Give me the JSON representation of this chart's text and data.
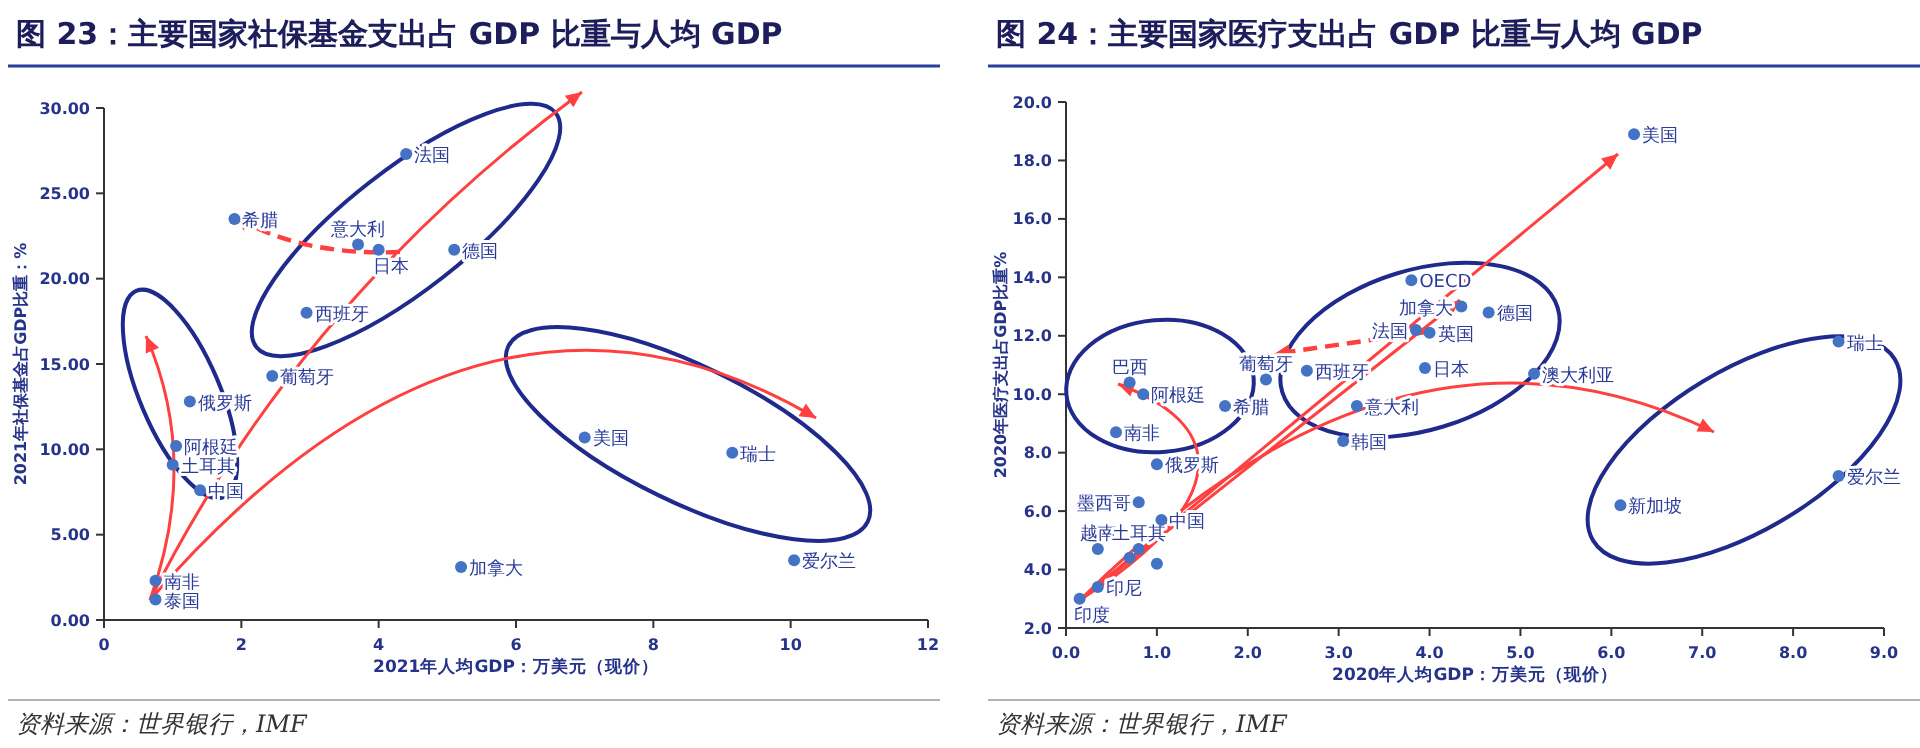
{
  "chart_data": [
    {
      "type": "scatter",
      "title": "图 23：主要国家社保基金支出占 GDP 比重与人均 GDP",
      "xlabel": "2021年人均GDP：万美元（现价）",
      "ylabel": "2021年社保基金占GDP比重：%",
      "xlim": [
        0,
        12
      ],
      "xticks": [
        0,
        2,
        4,
        6,
        8,
        10,
        12
      ],
      "ylim": [
        0,
        30
      ],
      "yticks": [
        {
          "value": 0,
          "label": "0.00"
        },
        {
          "value": 5,
          "label": "5.00"
        },
        {
          "value": 10,
          "label": "10.00"
        },
        {
          "value": 15,
          "label": "15.00"
        },
        {
          "value": 20,
          "label": "20.00"
        },
        {
          "value": 25,
          "label": "25.00"
        },
        {
          "value": 30,
          "label": "30.00"
        }
      ],
      "grid": false,
      "marker": "circle",
      "series": [
        {
          "color": "#4472c4",
          "x": [
            1.9,
            3.7,
            4.0,
            4.4,
            5.1,
            2.95,
            2.45,
            1.25,
            1.05,
            1.0,
            1.4,
            0.75,
            0.75,
            5.2,
            7.0,
            9.15,
            10.05
          ],
          "values": [
            23.5,
            22.0,
            21.7,
            27.3,
            21.7,
            18.0,
            14.3,
            12.8,
            10.2,
            9.1,
            7.6,
            2.3,
            1.2,
            3.1,
            10.7,
            9.8,
            3.5
          ]
        }
      ],
      "annotations": [
        {
          "text": "希腊",
          "x": 1.9,
          "y": 23.5
        },
        {
          "text": "意大利",
          "x": 3.7,
          "y": 22.0
        },
        {
          "text": "日本",
          "x": 4.0,
          "y": 21.7
        },
        {
          "text": "法国",
          "x": 4.4,
          "y": 27.3
        },
        {
          "text": "德国",
          "x": 5.1,
          "y": 21.7
        },
        {
          "text": "西班牙",
          "x": 2.95,
          "y": 18.0
        },
        {
          "text": "葡萄牙",
          "x": 2.45,
          "y": 14.3
        },
        {
          "text": "俄罗斯",
          "x": 1.25,
          "y": 12.8
        },
        {
          "text": "阿根廷",
          "x": 1.05,
          "y": 10.2
        },
        {
          "text": "土耳其",
          "x": 1.0,
          "y": 9.1
        },
        {
          "text": "中国",
          "x": 1.4,
          "y": 7.6
        },
        {
          "text": "南非",
          "x": 0.75,
          "y": 2.3
        },
        {
          "text": "泰国",
          "x": 0.75,
          "y": 1.2
        },
        {
          "text": "加拿大",
          "x": 5.2,
          "y": 3.1
        },
        {
          "text": "美国",
          "x": 7.0,
          "y": 10.7
        },
        {
          "text": "瑞士",
          "x": 9.15,
          "y": 9.8
        },
        {
          "text": "爱尔兰",
          "x": 10.05,
          "y": 3.5
        },
        "资料来源：世界银行，IMF"
      ]
    },
    {
      "type": "scatter",
      "title": "图 24：主要国家医疗支出占 GDP 比重与人均 GDP",
      "xlabel": "2020年人均GDP：万美元（现价）",
      "ylabel": "2020年医疗支出占GDP比重%",
      "xlim": [
        0,
        9
      ],
      "xticks": [
        {
          "value": 0,
          "label": "0.0"
        },
        {
          "value": 1,
          "label": "1.0"
        },
        {
          "value": 2,
          "label": "2.0"
        },
        {
          "value": 3,
          "label": "3.0"
        },
        {
          "value": 4,
          "label": "4.0"
        },
        {
          "value": 5,
          "label": "5.0"
        },
        {
          "value": 6,
          "label": "6.0"
        },
        {
          "value": 7,
          "label": "7.0"
        },
        {
          "value": 8,
          "label": "8.0"
        },
        {
          "value": 9,
          "label": "9.0"
        }
      ],
      "ylim": [
        2,
        20
      ],
      "yticks": [
        {
          "value": 2,
          "label": "2.0"
        },
        {
          "value": 4,
          "label": "4.0"
        },
        {
          "value": 6,
          "label": "6.0"
        },
        {
          "value": 8,
          "label": "8.0"
        },
        {
          "value": 10,
          "label": "10.0"
        },
        {
          "value": 12,
          "label": "12.0"
        },
        {
          "value": 14,
          "label": "14.0"
        },
        {
          "value": 16,
          "label": "16.0"
        },
        {
          "value": 18,
          "label": "18.0"
        },
        {
          "value": 20,
          "label": "20.0"
        }
      ],
      "grid": false,
      "marker": "circle",
      "series": [
        {
          "color": "#4472c4",
          "x": [
            6.25,
            8.5,
            8.5,
            6.1,
            5.15,
            4.65,
            4.35,
            3.8,
            3.85,
            4.0,
            3.95,
            2.65,
            3.2,
            3.05,
            2.2,
            1.75,
            0.7,
            0.85,
            0.55,
            1.0,
            0.8,
            1.05,
            0.35,
            0.8,
            0.35,
            0.15,
            0.7,
            1.0
          ],
          "values": [
            18.9,
            11.8,
            7.2,
            6.2,
            10.7,
            12.8,
            13.0,
            13.9,
            12.2,
            12.1,
            10.9,
            10.8,
            9.6,
            8.4,
            10.5,
            9.6,
            10.4,
            10.0,
            8.7,
            7.6,
            6.3,
            5.7,
            4.7,
            4.7,
            3.4,
            3.0,
            4.4,
            4.2
          ]
        }
      ],
      "annotations": [
        {
          "text": "美国",
          "x": 6.25,
          "y": 18.9
        },
        {
          "text": "瑞士",
          "x": 8.5,
          "y": 11.8
        },
        {
          "text": "爱尔兰",
          "x": 8.5,
          "y": 7.2
        },
        {
          "text": "新加坡",
          "x": 6.1,
          "y": 6.2
        },
        {
          "text": "澳大利亚",
          "x": 5.15,
          "y": 10.7
        },
        {
          "text": "德国",
          "x": 4.65,
          "y": 12.8
        },
        {
          "text": "加拿大",
          "x": 4.35,
          "y": 13.0
        },
        {
          "text": "OECD",
          "x": 3.8,
          "y": 13.9
        },
        {
          "text": "法国",
          "x": 3.85,
          "y": 12.2
        },
        {
          "text": "英国",
          "x": 4.0,
          "y": 12.1
        },
        {
          "text": "日本",
          "x": 3.95,
          "y": 10.9
        },
        {
          "text": "西班牙",
          "x": 2.65,
          "y": 10.8
        },
        {
          "text": "意大利",
          "x": 3.2,
          "y": 9.6
        },
        {
          "text": "韩国",
          "x": 3.05,
          "y": 8.4
        },
        {
          "text": "葡萄牙",
          "x": 2.2,
          "y": 10.5
        },
        {
          "text": "希腊",
          "x": 1.75,
          "y": 9.6
        },
        {
          "text": "巴西",
          "x": 0.7,
          "y": 10.4
        },
        {
          "text": "阿根廷",
          "x": 0.85,
          "y": 10.0
        },
        {
          "text": "南非",
          "x": 0.55,
          "y": 8.7
        },
        {
          "text": "俄罗斯",
          "x": 1.0,
          "y": 7.6
        },
        {
          "text": "墨西哥",
          "x": 0.8,
          "y": 6.3
        },
        {
          "text": "中国",
          "x": 1.05,
          "y": 5.7
        },
        {
          "text": "越南",
          "x": 0.35,
          "y": 4.7
        },
        {
          "text": "土耳其",
          "x": 0.8,
          "y": 4.7
        },
        {
          "text": "印尼",
          "x": 0.35,
          "y": 3.4
        },
        {
          "text": "印度",
          "x": 0.15,
          "y": 3.0
        },
        "资料来源：世界银行，IMF"
      ]
    }
  ]
}
